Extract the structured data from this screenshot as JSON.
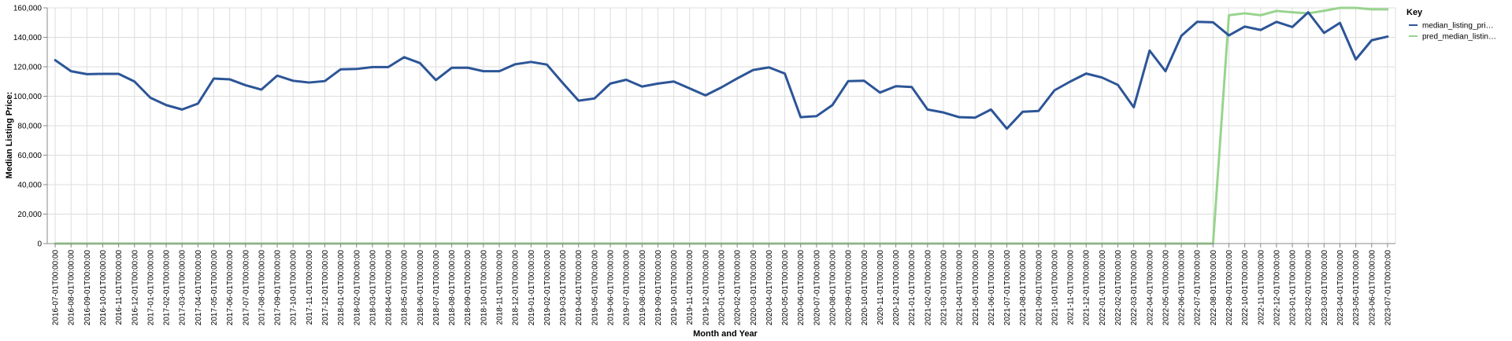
{
  "chart_data": {
    "type": "line",
    "xlabel": "Month and Year",
    "ylabel": "Median Listing Price:",
    "ylim": [
      0,
      160000
    ],
    "yticks": [
      0,
      20000,
      40000,
      60000,
      80000,
      100000,
      120000,
      140000,
      160000
    ],
    "ytick_labels": [
      "0",
      "20,000",
      "40,000",
      "60,000",
      "80,000",
      "100,000",
      "120,000",
      "140,000",
      "160,000"
    ],
    "grid": true,
    "legend_placement": "top-right",
    "legend_title": "Key",
    "x": [
      "2016-07-01T00:00:00",
      "2016-08-01T00:00:00",
      "2016-09-01T00:00:00",
      "2016-10-01T00:00:00",
      "2016-11-01T00:00:00",
      "2016-12-01T00:00:00",
      "2017-01-01T00:00:00",
      "2017-02-01T00:00:00",
      "2017-03-01T00:00:00",
      "2017-04-01T00:00:00",
      "2017-05-01T00:00:00",
      "2017-06-01T00:00:00",
      "2017-07-01T00:00:00",
      "2017-08-01T00:00:00",
      "2017-09-01T00:00:00",
      "2017-10-01T00:00:00",
      "2017-11-01T00:00:00",
      "2017-12-01T00:00:00",
      "2018-01-01T00:00:00",
      "2018-02-01T00:00:00",
      "2018-03-01T00:00:00",
      "2018-04-01T00:00:00",
      "2018-05-01T00:00:00",
      "2018-06-01T00:00:00",
      "2018-07-01T00:00:00",
      "2018-08-01T00:00:00",
      "2018-09-01T00:00:00",
      "2018-10-01T00:00:00",
      "2018-11-01T00:00:00",
      "2018-12-01T00:00:00",
      "2019-01-01T00:00:00",
      "2019-02-01T00:00:00",
      "2019-03-01T00:00:00",
      "2019-04-01T00:00:00",
      "2019-05-01T00:00:00",
      "2019-06-01T00:00:00",
      "2019-07-01T00:00:00",
      "2019-08-01T00:00:00",
      "2019-09-01T00:00:00",
      "2019-10-01T00:00:00",
      "2019-11-01T00:00:00",
      "2019-12-01T00:00:00",
      "2020-01-01T00:00:00",
      "2020-02-01T00:00:00",
      "2020-03-01T00:00:00",
      "2020-04-01T00:00:00",
      "2020-05-01T00:00:00",
      "2020-06-01T00:00:00",
      "2020-07-01T00:00:00",
      "2020-08-01T00:00:00",
      "2020-09-01T00:00:00",
      "2020-10-01T00:00:00",
      "2020-11-01T00:00:00",
      "2020-12-01T00:00:00",
      "2021-01-01T00:00:00",
      "2021-02-01T00:00:00",
      "2021-03-01T00:00:00",
      "2021-04-01T00:00:00",
      "2021-05-01T00:00:00",
      "2021-06-01T00:00:00",
      "2021-07-01T00:00:00",
      "2021-08-01T00:00:00",
      "2021-09-01T00:00:00",
      "2021-10-01T00:00:00",
      "2021-11-01T00:00:00",
      "2021-12-01T00:00:00",
      "2022-01-01T00:00:00",
      "2022-02-01T00:00:00",
      "2022-03-01T00:00:00",
      "2022-04-01T00:00:00",
      "2022-05-01T00:00:00",
      "2022-06-01T00:00:00",
      "2022-07-01T00:00:00",
      "2022-08-01T00:00:00",
      "2022-09-01T00:00:00",
      "2022-10-01T00:00:00",
      "2022-11-01T00:00:00",
      "2022-12-01T00:00:00",
      "2023-01-01T00:00:00",
      "2023-02-01T00:00:00",
      "2023-03-01T00:00:00",
      "2023-04-01T00:00:00",
      "2023-05-01T00:00:00",
      "2023-06-01T00:00:00",
      "2023-07-01T00:00:00"
    ],
    "series": [
      {
        "name": "median_listing_pri…",
        "color": "#2c5597",
        "values": [
          124500,
          117000,
          115000,
          115200,
          115200,
          110000,
          99000,
          94000,
          91000,
          95000,
          112000,
          111500,
          107500,
          104500,
          114000,
          110500,
          109300,
          110300,
          118300,
          118500,
          119800,
          119800,
          126500,
          122500,
          111000,
          119300,
          119400,
          117000,
          117000,
          121700,
          123300,
          121500,
          109000,
          97000,
          98500,
          108600,
          111200,
          106600,
          108600,
          110000,
          105300,
          100600,
          106000,
          112100,
          117800,
          119600,
          115400,
          85800,
          86500,
          94000,
          110300,
          110500,
          102500,
          106800,
          106300,
          91000,
          89000,
          85800,
          85500,
          91000,
          78000,
          89500,
          90000,
          104000,
          110000,
          115400,
          112700,
          107700,
          92500,
          131000,
          117000,
          141000,
          150500,
          150200,
          141300,
          147300,
          145000,
          150500,
          147000,
          157000,
          143000,
          149800,
          125000,
          138000,
          140500
        ]
      },
      {
        "name": "pred_median_listin…",
        "color": "#98d48e",
        "values": [
          0,
          0,
          0,
          0,
          0,
          0,
          0,
          0,
          0,
          0,
          0,
          0,
          0,
          0,
          0,
          0,
          0,
          0,
          0,
          0,
          0,
          0,
          0,
          0,
          0,
          0,
          0,
          0,
          0,
          0,
          0,
          0,
          0,
          0,
          0,
          0,
          0,
          0,
          0,
          0,
          0,
          0,
          0,
          0,
          0,
          0,
          0,
          0,
          0,
          0,
          0,
          0,
          0,
          0,
          0,
          0,
          0,
          0,
          0,
          0,
          0,
          0,
          0,
          0,
          0,
          0,
          0,
          0,
          0,
          0,
          0,
          0,
          0,
          0,
          155000,
          156300,
          155000,
          157900,
          157000,
          156300,
          158000,
          160000,
          160000,
          159000,
          159000
        ]
      }
    ]
  }
}
